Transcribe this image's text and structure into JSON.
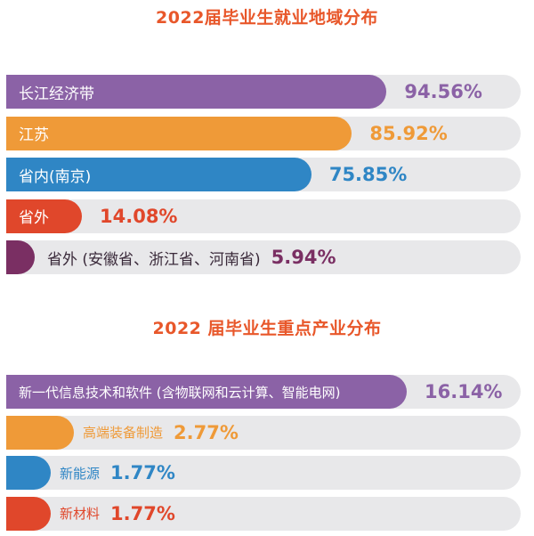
{
  "chart_data": [
    {
      "type": "bar",
      "title": "2022届毕业生就业地域分布",
      "categories": [
        "长江经济带",
        "江苏",
        "省内(南京)",
        "省外",
        "省外 (安徽省、浙江省、河南省)"
      ],
      "values": [
        94.56,
        85.92,
        75.85,
        14.08,
        5.94
      ],
      "value_labels": [
        "94.56%",
        "85.92%",
        "75.85%",
        "14.08%",
        "5.94%"
      ],
      "colors": [
        "#8b62a6",
        "#ef9a38",
        "#2f86c5",
        "#e0472b",
        "#7a2f63"
      ],
      "label_on_fill": [
        true,
        true,
        true,
        true,
        false
      ],
      "xlim": [
        0,
        100
      ]
    },
    {
      "type": "bar",
      "title": "2022 届毕业生重点产业分布",
      "categories": [
        "新一代信息技术和软件 (含物联网和云计算、智能电网)",
        "高端装备制造",
        "新能源",
        "新材料"
      ],
      "values": [
        16.14,
        2.77,
        1.77,
        1.77
      ],
      "value_labels": [
        "16.14%",
        "2.77%",
        "1.77%",
        "1.77%"
      ],
      "colors": [
        "#8b62a6",
        "#ef9a38",
        "#2f86c5",
        "#e0472b"
      ],
      "label_on_fill": [
        true,
        false,
        false,
        false
      ],
      "xlim": [
        0,
        20
      ]
    }
  ]
}
